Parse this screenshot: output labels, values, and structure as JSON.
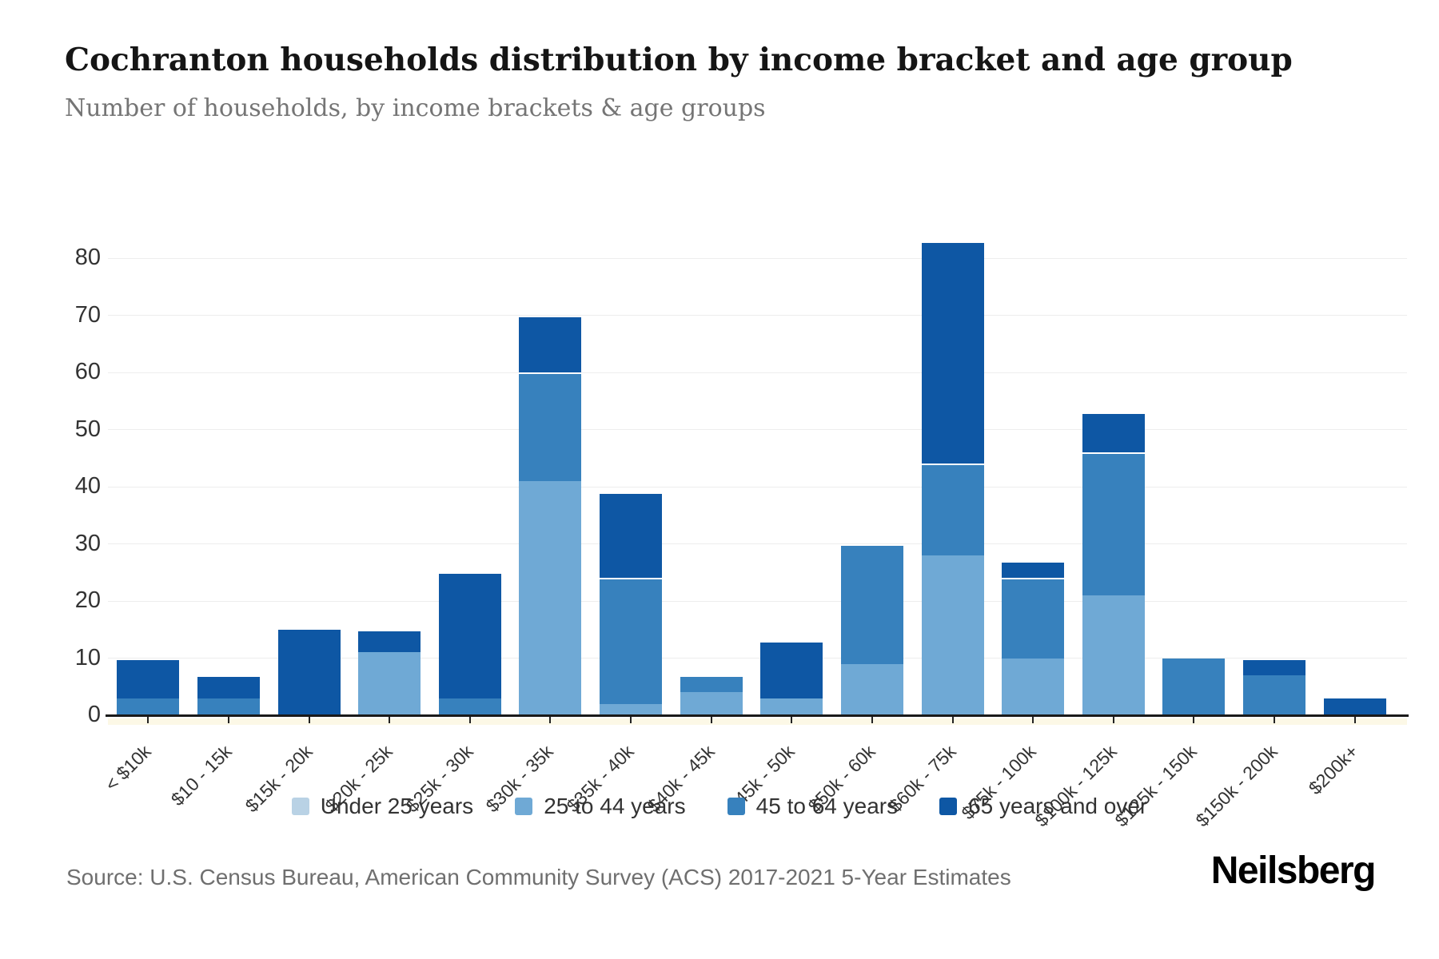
{
  "header": {
    "title": "Cochranton households distribution by income bracket and age group",
    "subtitle": "Number of households, by income brackets & age groups"
  },
  "footer": {
    "source": "Source: U.S. Census Bureau, American Community Survey (ACS) 2017-2021 5-Year Estimates",
    "logo": "Neilsberg"
  },
  "colors": {
    "under_25": "#b9d2e5",
    "25_to_44": "#6fa9d5",
    "45_to_64": "#3781bd",
    "65_and_over": "#0e57a4",
    "gridline": "#ededed",
    "axis": "#1a1a1a"
  },
  "chart_data": {
    "type": "bar",
    "stacked": true,
    "title": "Cochranton households distribution by income bracket and age group",
    "subtitle": "Number of households, by income brackets & age groups",
    "xlabel": "",
    "ylabel": "",
    "ylim": [
      0,
      80
    ],
    "yticks": [
      0,
      10,
      20,
      30,
      40,
      50,
      60,
      70,
      80
    ],
    "grid": true,
    "legend_position": "bottom",
    "categories": [
      "< $10k",
      "$10 - 15k",
      "$15k - 20k",
      "$20k - 25k",
      "$25k - 30k",
      "$30k - 35k",
      "$35k - 40k",
      "$40k - 45k",
      "$45k - 50k",
      "$50k - 60k",
      "$60k - 75k",
      "$75k - 100k",
      "$100k - 125k",
      "$125k - 150k",
      "$150k - 200k",
      "$200k+"
    ],
    "series": [
      {
        "name": "Under 25 years",
        "color": "#b9d2e5",
        "values": [
          0,
          0,
          0,
          0,
          0,
          0,
          0,
          0,
          0,
          0,
          0,
          0,
          0,
          0,
          0,
          0
        ]
      },
      {
        "name": "25 to 44 years",
        "color": "#6fa9d5",
        "values": [
          0,
          0,
          0,
          11,
          0,
          41,
          2,
          4,
          3,
          9,
          28,
          10,
          21,
          0,
          0,
          0
        ]
      },
      {
        "name": "45 to 64 years",
        "color": "#3781bd",
        "values": [
          3,
          3,
          0,
          0,
          3,
          19,
          22,
          3,
          0,
          21,
          16,
          14,
          25,
          10,
          7,
          0
        ]
      },
      {
        "name": "65 years and over",
        "color": "#0e57a4",
        "values": [
          7,
          4,
          15,
          4,
          22,
          10,
          15,
          0,
          10,
          0,
          39,
          3,
          7,
          0,
          3,
          3
        ]
      }
    ],
    "totals": [
      10,
      7,
      15,
      15,
      25,
      70,
      39,
      7,
      13,
      30,
      83,
      27,
      53,
      10,
      10,
      3
    ]
  }
}
